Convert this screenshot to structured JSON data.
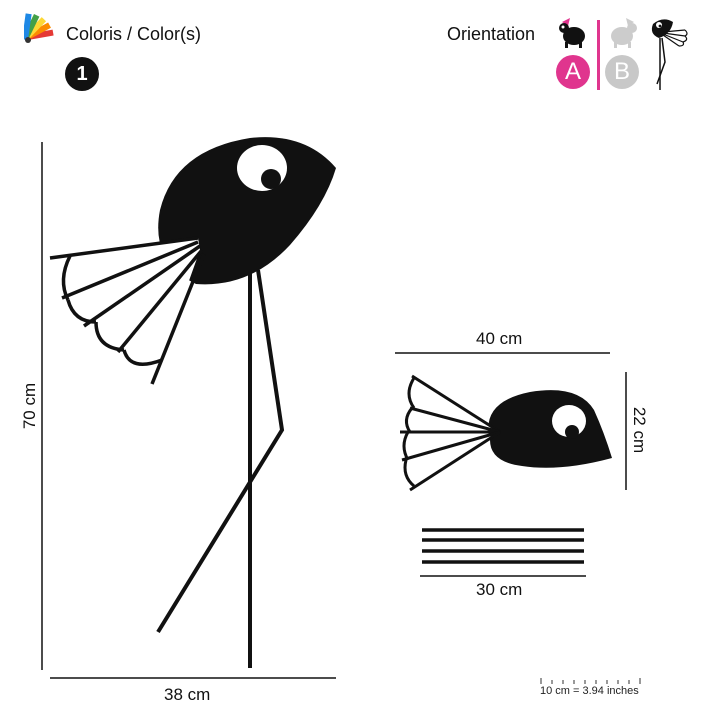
{
  "header": {
    "colors_label": "Coloris / Color(s)",
    "color_count": "1",
    "orientation_label": "Orientation",
    "option_a": "A",
    "option_b": "B",
    "palette_icon": "color-swatch-fan-icon",
    "turtle_icon": "turtle-icon",
    "bird_icon": "bird-icon"
  },
  "colors": {
    "ink": "#111111",
    "accent": "#e0358e",
    "inactive": "#c8c8c8"
  },
  "dimensions": {
    "main_height": "70 cm",
    "main_width": "38 cm",
    "head_width": "40 cm",
    "head_height": "22 cm",
    "legs_width": "30 cm"
  },
  "scale": {
    "note": "10 cm = 3.94 inches"
  }
}
